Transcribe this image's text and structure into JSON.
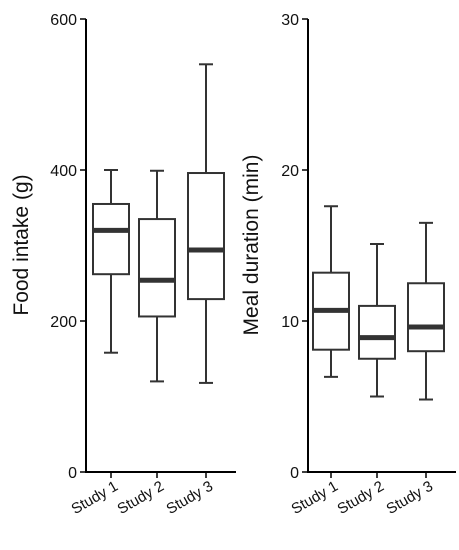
{
  "chart_data": [
    {
      "type": "boxplot",
      "categories": [
        "Study 1",
        "Study 2",
        "Study 3"
      ],
      "ylabel": "Food intake (g)",
      "xlabel": "",
      "ylim": [
        0,
        600
      ],
      "yticks": [
        0,
        200,
        400,
        600
      ],
      "grid": false,
      "boxes": [
        {
          "category": "Study 1",
          "min": 158,
          "q1": 262,
          "median": 320,
          "q3": 355,
          "max": 400
        },
        {
          "category": "Study 2",
          "min": 120,
          "q1": 206,
          "median": 254,
          "q3": 335,
          "max": 399
        },
        {
          "category": "Study 3",
          "min": 118,
          "q1": 229,
          "median": 294,
          "q3": 396,
          "max": 540
        }
      ],
      "colors": {
        "box_stroke": "#333333",
        "box_fill": "#ffffff",
        "axis": "#000000"
      }
    },
    {
      "type": "boxplot",
      "categories": [
        "Study 1",
        "Study 2",
        "Study 3"
      ],
      "ylabel": "Meal duration (min)",
      "xlabel": "",
      "ylim": [
        0,
        30
      ],
      "yticks": [
        0,
        10,
        20,
        30
      ],
      "grid": false,
      "boxes": [
        {
          "category": "Study 1",
          "min": 6.3,
          "q1": 8.1,
          "median": 10.7,
          "q3": 13.2,
          "max": 17.6
        },
        {
          "category": "Study 2",
          "min": 5.0,
          "q1": 7.5,
          "median": 8.9,
          "q3": 11.0,
          "max": 15.1
        },
        {
          "category": "Study 3",
          "min": 4.8,
          "q1": 8.0,
          "median": 9.6,
          "q3": 12.5,
          "max": 16.5
        }
      ],
      "colors": {
        "box_stroke": "#333333",
        "box_fill": "#ffffff",
        "axis": "#000000"
      }
    }
  ]
}
